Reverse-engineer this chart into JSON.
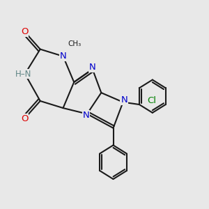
{
  "background_color": "#e8e8e8",
  "bond_color": "#1a1a1a",
  "bond_width": 1.5,
  "figsize": [
    3.0,
    3.0
  ],
  "dpi": 100,
  "xlim": [
    -0.3,
    9.2
  ],
  "ylim": [
    1.0,
    9.8
  ]
}
